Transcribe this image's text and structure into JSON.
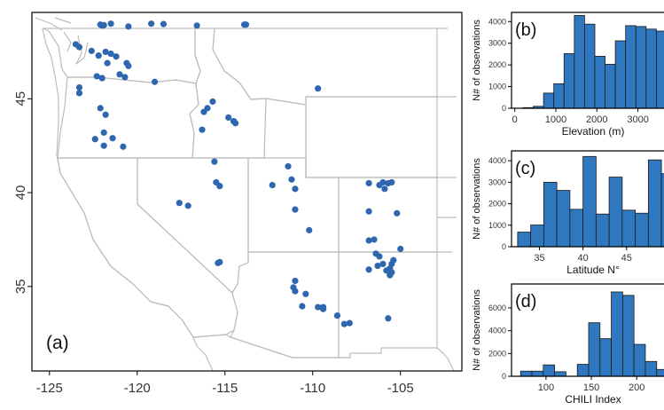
{
  "colors": {
    "points": "#2e67b0",
    "bars": "#2f78bf",
    "state_lines": "#bdbdbd",
    "land": "#ffffff"
  },
  "chart_data": [
    {
      "type": "scatter",
      "panel_label": "(a)",
      "x_ticks": [
        -125,
        -120,
        -115,
        -110,
        -105
      ],
      "y_ticks": [
        35,
        40,
        45
      ],
      "xlim": [
        -126,
        -101.5
      ],
      "ylim": [
        30.5,
        49.6
      ],
      "x": [
        -122.1,
        -122.0,
        -121.9,
        -121.5,
        -120.5,
        -119.2,
        -118.5,
        -116.6,
        -113.8,
        -113.9,
        -123.5,
        -123.3,
        -122.6,
        -122.2,
        -121.8,
        -121.5,
        -121.7,
        -121.2,
        -120.6,
        -120.5,
        -122.3,
        -122.0,
        -121.0,
        -120.7,
        -119.0,
        -109.7,
        -123.3,
        -123.3,
        -122.1,
        -121.8,
        -121.9,
        -122.4,
        -121.4,
        -121.9,
        -120.8,
        -116.0,
        -115.7,
        -116.2,
        -114.8,
        -114.5,
        -114.4,
        -114.5,
        -116.3,
        -115.6,
        -115.5,
        -115.3,
        -117.6,
        -117.1,
        -115.3,
        -115.4,
        -111.4,
        -111.2,
        -111.0,
        -111.0,
        -110.2,
        -112.3,
        -106.8,
        -106.0,
        -106.2,
        -105.7,
        -105.5,
        -105.9,
        -105.2,
        -106.8,
        -106.8,
        -106.5,
        -105.0,
        -106.2,
        -106.4,
        -105.5,
        -105.4,
        -105.6,
        -105.8,
        -105.6,
        -105.5,
        -106.0,
        -106.8,
        -106.3,
        -111.0,
        -111.1,
        -110.4,
        -110.6,
        -109.7,
        -109.4,
        -109.4,
        -108.6,
        -108.2,
        -107.9,
        -105.7,
        -111.0
      ],
      "y": [
        48.95,
        48.9,
        48.92,
        49.0,
        48.85,
        49.0,
        48.98,
        48.9,
        48.95,
        48.95,
        47.9,
        47.75,
        47.55,
        47.3,
        47.5,
        47.4,
        46.9,
        47.25,
        46.9,
        46.75,
        46.2,
        46.1,
        46.3,
        46.15,
        45.9,
        45.55,
        45.6,
        45.3,
        44.5,
        44.15,
        43.2,
        42.85,
        42.9,
        42.5,
        42.45,
        44.5,
        44.85,
        44.3,
        44.0,
        43.8,
        43.7,
        43.8,
        43.35,
        41.65,
        40.55,
        40.35,
        39.45,
        39.3,
        36.3,
        36.25,
        41.4,
        40.7,
        40.2,
        39.1,
        38.0,
        40.4,
        40.5,
        40.55,
        40.4,
        40.5,
        40.55,
        40.2,
        38.9,
        39.0,
        37.45,
        37.5,
        37.0,
        36.6,
        36.75,
        36.2,
        36.4,
        35.95,
        35.85,
        35.6,
        35.75,
        36.2,
        35.9,
        36.1,
        35.3,
        34.95,
        34.6,
        33.95,
        33.9,
        33.8,
        33.9,
        33.45,
        33.0,
        33.05,
        33.3,
        34.75
      ],
      "axis_values": [
        "-125",
        "-120",
        "-115",
        "-110",
        "-105",
        "35",
        "40",
        "45"
      ]
    },
    {
      "type": "bar",
      "panel_label": "(b)",
      "xlabel": "Elevation (m)",
      "ylabel": "N# of observations",
      "x_ticks": [
        "0",
        "1000",
        "2000",
        "3000"
      ],
      "y_ticks": [
        "0",
        "1000",
        "2000",
        "3000",
        "4000"
      ],
      "xlim": [
        -80,
        3700
      ],
      "ylim": [
        0,
        4420
      ],
      "bin_width": 250,
      "bin_starts": [
        200,
        450,
        700,
        950,
        1200,
        1450,
        1700,
        1950,
        2200,
        2450,
        2700,
        2950,
        3200,
        3450
      ],
      "values": [
        30,
        90,
        700,
        1130,
        2520,
        4280,
        3880,
        2400,
        2030,
        3110,
        3810,
        3770,
        3650,
        3560
      ]
    },
    {
      "type": "bar",
      "panel_label": "(c)",
      "xlabel": "Latitude N°",
      "ylabel": "N# of observations",
      "x_ticks": [
        "35",
        "40",
        "45",
        "5"
      ],
      "y_ticks": [
        "0",
        "1000",
        "2000",
        "3000",
        "4000"
      ],
      "xlim": [
        31.8,
        49.6
      ],
      "ylim": [
        0,
        4460
      ],
      "bin_width": 1.5,
      "bin_starts": [
        32.5,
        34.0,
        35.5,
        37.0,
        38.5,
        40.0,
        41.5,
        43.0,
        44.5,
        46.0,
        47.5,
        49.0
      ],
      "values": [
        680,
        1010,
        3000,
        2620,
        1740,
        4200,
        1520,
        3240,
        1700,
        1560,
        4040,
        3400
      ]
    },
    {
      "type": "bar",
      "panel_label": "(d)",
      "xlabel": "CHILI Index",
      "ylabel": "N# of observations",
      "x_ticks": [
        "100",
        "150",
        "200"
      ],
      "y_ticks": [
        "0",
        "2000",
        "4000",
        "6000"
      ],
      "xlim": [
        62,
        233
      ],
      "ylim": [
        0,
        8100
      ],
      "bin_width": 12.5,
      "bin_starts": [
        72,
        84.5,
        97,
        109.5,
        122,
        134.5,
        147,
        159.5,
        172,
        184.5,
        197,
        209.5,
        222
      ],
      "values": [
        450,
        450,
        1000,
        400,
        0,
        1050,
        4700,
        3300,
        7400,
        7100,
        2800,
        1300,
        600
      ]
    }
  ]
}
